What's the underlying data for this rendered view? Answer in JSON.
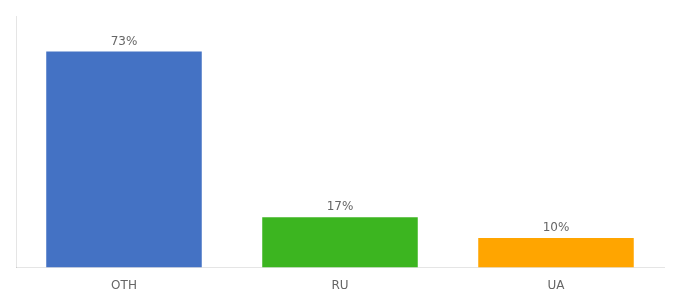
{
  "chart_data": {
    "type": "bar",
    "categories": [
      "OTH",
      "RU",
      "UA"
    ],
    "values": [
      73,
      17,
      10
    ],
    "value_labels": [
      "73%",
      "17%",
      "10%"
    ],
    "colors": [
      "#4472C4",
      "#3CB520",
      "#FFA500"
    ],
    "ylim": [
      0,
      85
    ],
    "grid": false,
    "data_labels": true,
    "tick_labels": "x"
  }
}
